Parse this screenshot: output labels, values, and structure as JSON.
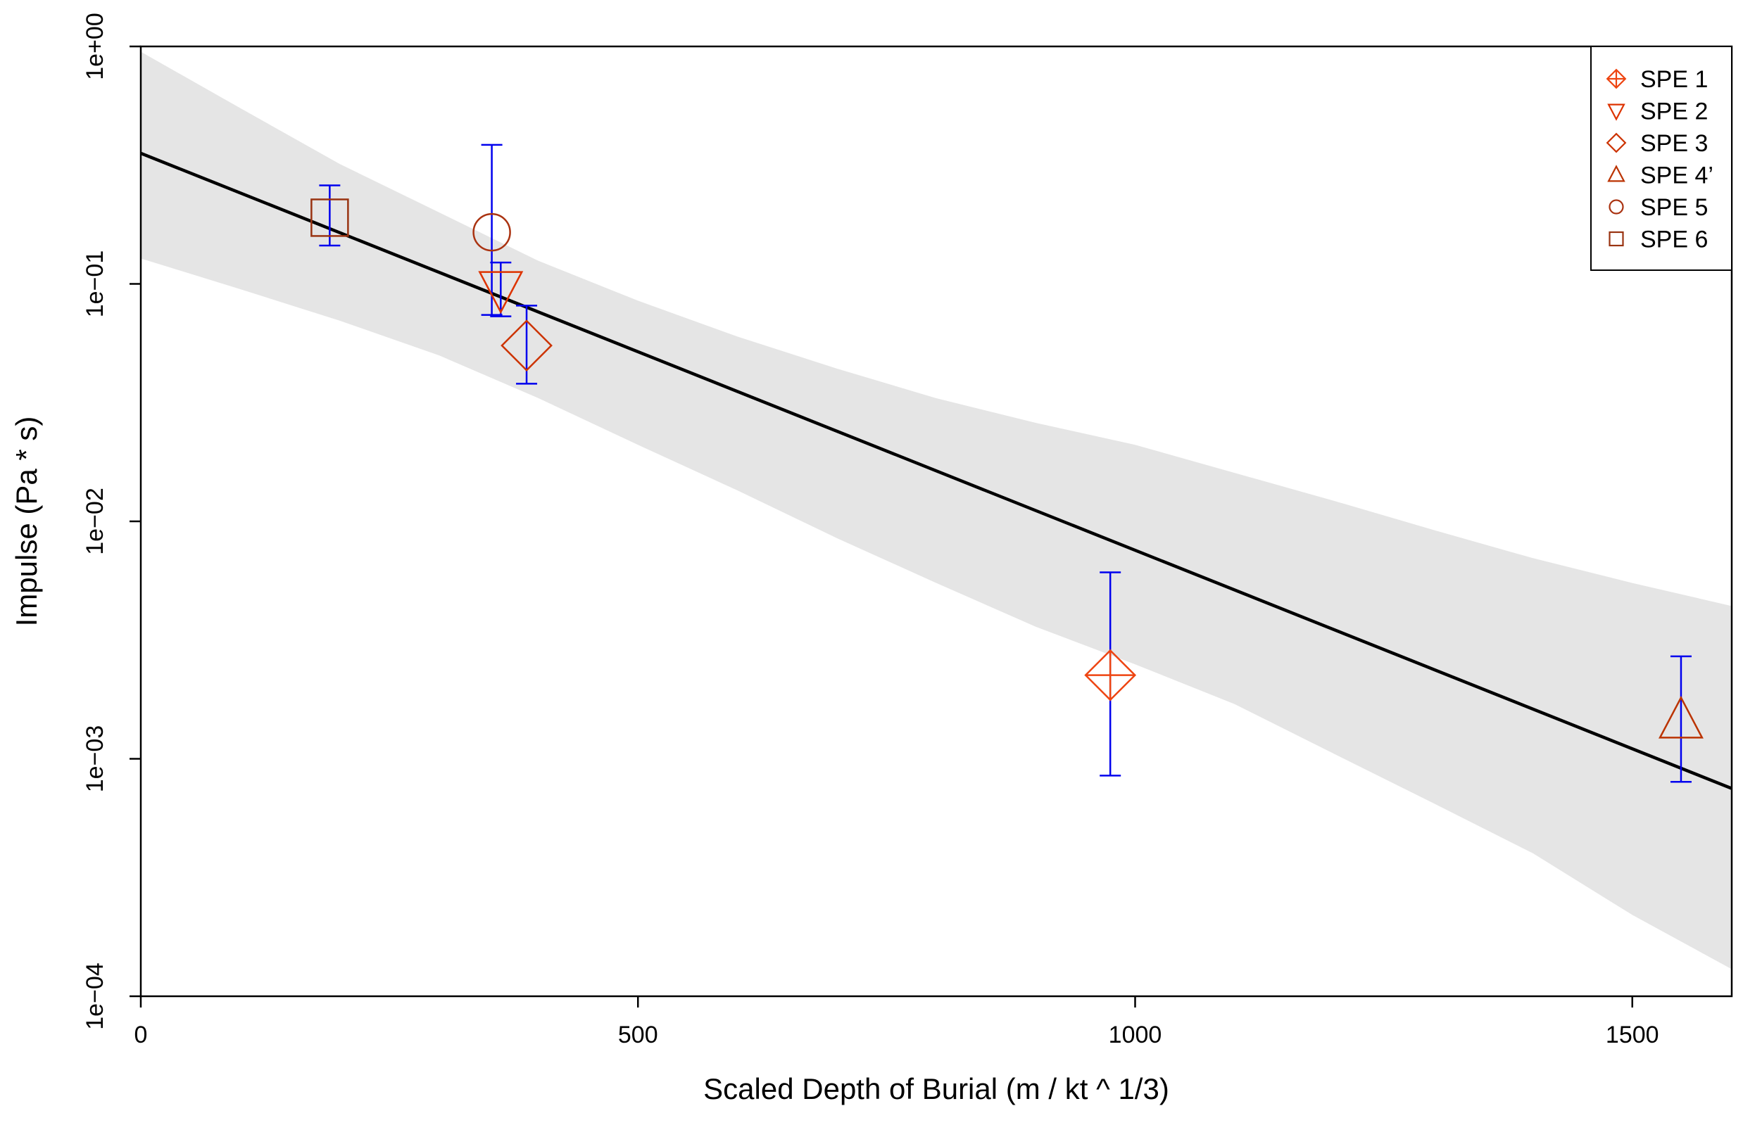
{
  "chart_data": {
    "type": "scatter",
    "title": "",
    "xlabel": "Scaled Depth of Burial (m / kt ^ 1/3)",
    "ylabel": "Impulse (Pa * s)",
    "xlim": [
      0,
      1600
    ],
    "ylim": [
      0.0001,
      1
    ],
    "yscale": "log",
    "grid": false,
    "legend_position": "top-right",
    "x_ticks": [
      {
        "value": 0,
        "label": "0"
      },
      {
        "value": 500,
        "label": "500"
      },
      {
        "value": 1000,
        "label": "1000"
      },
      {
        "value": 1500,
        "label": "1500"
      }
    ],
    "y_ticks": [
      {
        "value": 0.0001,
        "label": "1e−04"
      },
      {
        "value": 0.001,
        "label": "1e−03"
      },
      {
        "value": 0.01,
        "label": "1e−02"
      },
      {
        "value": 0.1,
        "label": "1e−01"
      },
      {
        "value": 1,
        "label": "1e+00"
      }
    ],
    "series": [
      {
        "name": "SPE 1",
        "marker": "diamond-plus",
        "color": "#ee4411",
        "x": 975,
        "y": 0.00225,
        "err_low": 0.00085,
        "err_high": 0.0061
      },
      {
        "name": "SPE 2",
        "marker": "triangle-down",
        "color": "#dd3300",
        "x": 362,
        "y": 0.095,
        "err_low": 0.073,
        "err_high": 0.123
      },
      {
        "name": "SPE 3",
        "marker": "diamond",
        "color": "#cc3300",
        "x": 388,
        "y": 0.055,
        "err_low": 0.038,
        "err_high": 0.081
      },
      {
        "name": "SPE 4’",
        "marker": "triangle-up",
        "color": "#bb3300",
        "x": 1549,
        "y": 0.00145,
        "err_low": 0.0008,
        "err_high": 0.0027
      },
      {
        "name": "SPE 5",
        "marker": "circle",
        "color": "#aa3311",
        "x": 353,
        "y": 0.165,
        "err_low": 0.074,
        "err_high": 0.385
      },
      {
        "name": "SPE 6",
        "marker": "square",
        "color": "#993311",
        "x": 190,
        "y": 0.19,
        "err_low": 0.145,
        "err_high": 0.26
      }
    ],
    "fit_line": {
      "x": [
        0,
        1600
      ],
      "y": [
        0.355,
        0.00075
      ],
      "color": "#000000"
    },
    "confidence_band": {
      "x": [
        0,
        100,
        200,
        300,
        400,
        500,
        600,
        700,
        800,
        900,
        1000,
        1100,
        1200,
        1300,
        1400,
        1500,
        1600
      ],
      "lower": [
        0.128,
        0.095,
        0.07,
        0.05,
        0.033,
        0.021,
        0.0135,
        0.0085,
        0.0055,
        0.0036,
        0.0025,
        0.0017,
        0.00105,
        0.00065,
        0.0004,
        0.00022,
        0.00013
      ],
      "upper": [
        0.95,
        0.55,
        0.32,
        0.2,
        0.125,
        0.085,
        0.06,
        0.044,
        0.033,
        0.026,
        0.021,
        0.016,
        0.0122,
        0.0092,
        0.007,
        0.0055,
        0.0044
      ],
      "color": "#e5e5e5"
    },
    "error_bar_color": "#0000ee"
  }
}
